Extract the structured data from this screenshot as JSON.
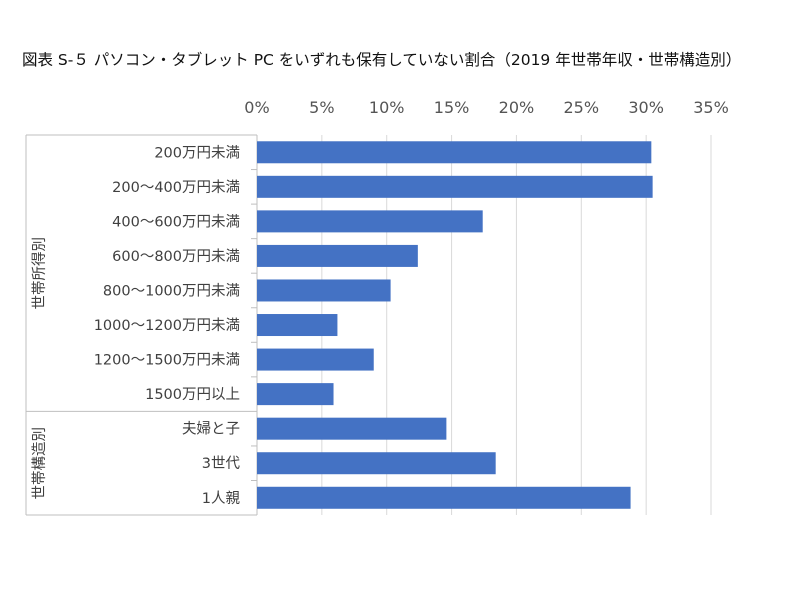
{
  "chart_data": {
    "type": "bar",
    "orientation": "horizontal",
    "title": "図表 S-５ パソコン・タブレット PC をいずれも保有していない割合（2019 年世帯年収・世帯構造別）",
    "xlabel": "",
    "ylabel": "",
    "xlim": [
      0,
      35
    ],
    "xticks": [
      "0%",
      "5%",
      "10%",
      "15%",
      "20%",
      "25%",
      "30%",
      "35%"
    ],
    "grid": true,
    "bar_color": "#4472C4",
    "categories": [
      "200万円未満",
      "200～400万円未満",
      "400～600万円未満",
      "600～800万円未満",
      "800～1000万円未満",
      "1000～1200万円未満",
      "1200～1500万円未満",
      "1500万円以上",
      "夫婦と子",
      "3世代",
      "1人親"
    ],
    "values": [
      30.4,
      30.5,
      17.4,
      12.4,
      10.3,
      6.2,
      9.0,
      5.9,
      14.6,
      18.4,
      28.8
    ],
    "groups": [
      {
        "label": "世帯所得別",
        "start": 0,
        "end": 7
      },
      {
        "label": "世帯構造別",
        "start": 8,
        "end": 10
      }
    ]
  }
}
